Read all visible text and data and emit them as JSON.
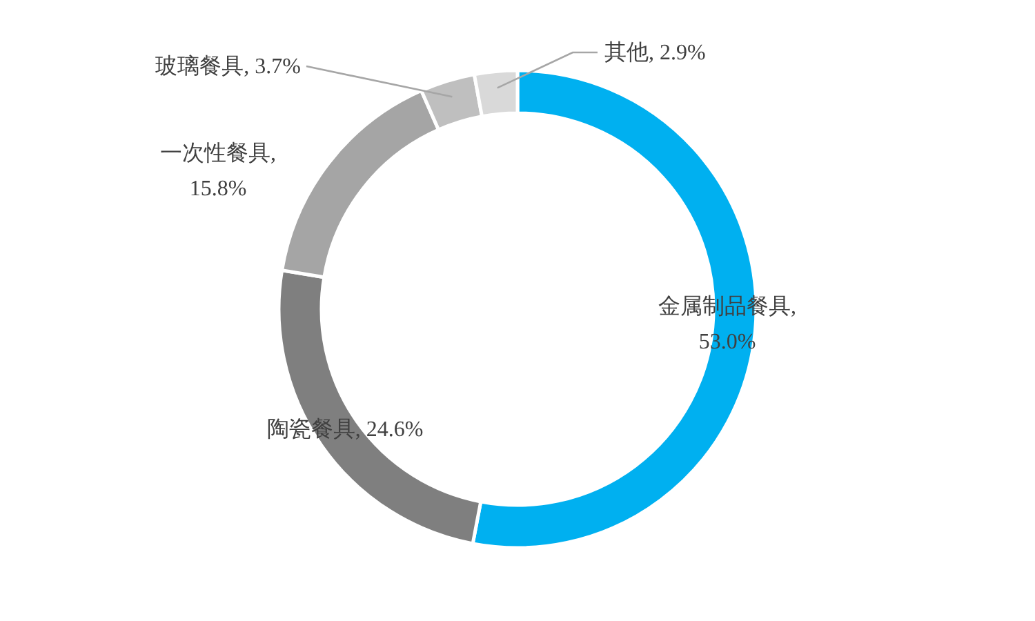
{
  "chart_data": {
    "type": "donut",
    "categories": [
      "金属制品餐具",
      "陶瓷餐具",
      "一次性餐具",
      "玻璃餐具",
      "其他"
    ],
    "values": [
      53.0,
      24.6,
      15.8,
      3.7,
      2.9
    ],
    "value_labels": [
      ", 53.0%",
      ", 24.6%",
      ", 15.8%",
      ", 3.7%",
      ", 2.9%"
    ],
    "colors": [
      "#00b0f0",
      "#7f7f7f",
      "#a5a5a5",
      "#bfbfbf",
      "#d9d9d9"
    ]
  }
}
